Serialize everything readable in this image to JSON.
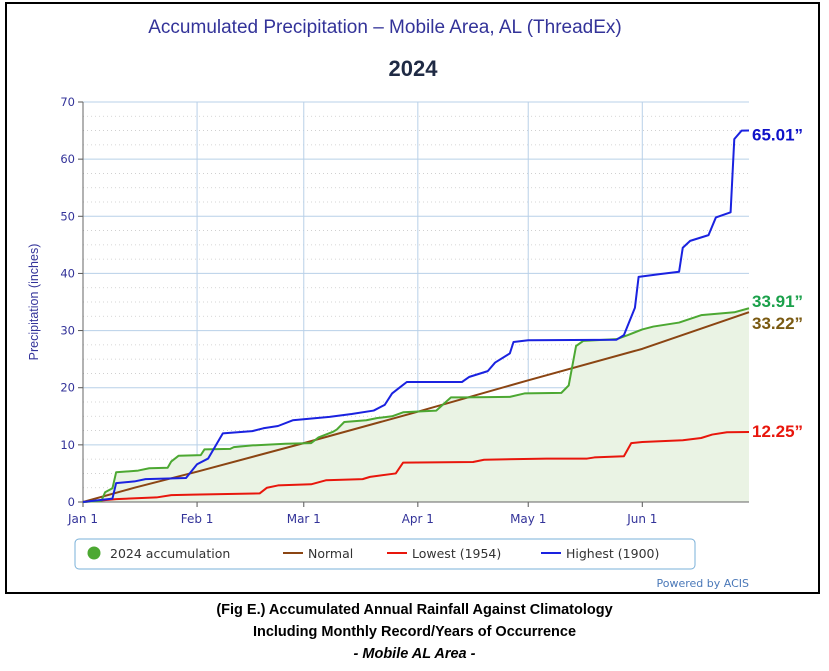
{
  "chart_data": {
    "type": "line",
    "title": "Accumulated Precipitation – Mobile Area, AL (ThreadEx)",
    "subtitle": "2024",
    "ylabel": "Precipitation (inches)",
    "xlabel": "",
    "x_domain": [
      "2024-01-01",
      "2024-06-30"
    ],
    "ylim": [
      0,
      70
    ],
    "y_ticks": [
      0,
      10,
      20,
      30,
      40,
      50,
      60,
      70
    ],
    "x_ticks": [
      {
        "label": "Jan 1",
        "date": "2024-01-01"
      },
      {
        "label": "Feb 1",
        "date": "2024-02-01"
      },
      {
        "label": "Mar 1",
        "date": "2024-03-01"
      },
      {
        "label": "Apr 1",
        "date": "2024-04-01"
      },
      {
        "label": "May 1",
        "date": "2024-05-01"
      },
      {
        "label": "Jun 1",
        "date": "2024-06-01"
      }
    ],
    "grid": true,
    "legend_position": "bottom",
    "credit": "Powered by ACIS",
    "series": [
      {
        "name": "2024 accumulation",
        "key": "accum",
        "color": "#4ca832",
        "fill": "#eaf3e4",
        "legend_marker": "dot",
        "points": [
          [
            "2024-01-01",
            0.0
          ],
          [
            "2024-01-06",
            0.2
          ],
          [
            "2024-01-07",
            1.7
          ],
          [
            "2024-01-09",
            2.4
          ],
          [
            "2024-01-10",
            5.2
          ],
          [
            "2024-01-16",
            5.5
          ],
          [
            "2024-01-19",
            5.9
          ],
          [
            "2024-01-24",
            6.0
          ],
          [
            "2024-01-25",
            7.1
          ],
          [
            "2024-01-27",
            8.1
          ],
          [
            "2024-02-02",
            8.2
          ],
          [
            "2024-02-03",
            9.2
          ],
          [
            "2024-02-10",
            9.3
          ],
          [
            "2024-02-11",
            9.6
          ],
          [
            "2024-02-16",
            9.9
          ],
          [
            "2024-02-25",
            10.2
          ],
          [
            "2024-03-03",
            10.3
          ],
          [
            "2024-03-05",
            11.3
          ],
          [
            "2024-03-09",
            12.3
          ],
          [
            "2024-03-10",
            12.7
          ],
          [
            "2024-03-12",
            14.0
          ],
          [
            "2024-03-18",
            14.3
          ],
          [
            "2024-03-21",
            14.7
          ],
          [
            "2024-03-25",
            15.0
          ],
          [
            "2024-03-28",
            15.7
          ],
          [
            "2024-04-06",
            16.0
          ],
          [
            "2024-04-10",
            18.3
          ],
          [
            "2024-04-14",
            18.3
          ],
          [
            "2024-04-26",
            18.4
          ],
          [
            "2024-04-30",
            19.0
          ],
          [
            "2024-05-10",
            19.1
          ],
          [
            "2024-05-12",
            20.4
          ],
          [
            "2024-05-14",
            27.3
          ],
          [
            "2024-05-16",
            28.2
          ],
          [
            "2024-05-25",
            28.5
          ],
          [
            "2024-05-28",
            29.2
          ],
          [
            "2024-06-01",
            30.2
          ],
          [
            "2024-06-04",
            30.7
          ],
          [
            "2024-06-11",
            31.4
          ],
          [
            "2024-06-17",
            32.7
          ],
          [
            "2024-06-26",
            33.2
          ],
          [
            "2024-06-30",
            33.91
          ]
        ]
      },
      {
        "name": "Normal",
        "key": "normal",
        "color": "#8b4513",
        "legend_marker": "line",
        "points": [
          [
            "2024-01-01",
            0.0
          ],
          [
            "2024-01-15",
            2.5
          ],
          [
            "2024-02-01",
            5.3
          ],
          [
            "2024-03-01",
            10.3
          ],
          [
            "2024-04-01",
            15.8
          ],
          [
            "2024-05-01",
            21.3
          ],
          [
            "2024-06-01",
            26.8
          ],
          [
            "2024-06-30",
            33.22
          ]
        ]
      },
      {
        "name": "Lowest (1954)",
        "key": "lowest",
        "color": "#e8160c",
        "legend_marker": "line",
        "points": [
          [
            "2024-01-01",
            0.0
          ],
          [
            "2024-01-10",
            0.5
          ],
          [
            "2024-01-21",
            0.8
          ],
          [
            "2024-01-25",
            1.2
          ],
          [
            "2024-01-31",
            1.3
          ],
          [
            "2024-02-18",
            1.5
          ],
          [
            "2024-02-20",
            2.5
          ],
          [
            "2024-02-23",
            2.9
          ],
          [
            "2024-03-03",
            3.1
          ],
          [
            "2024-03-07",
            3.8
          ],
          [
            "2024-03-17",
            4.0
          ],
          [
            "2024-03-19",
            4.4
          ],
          [
            "2024-03-26",
            5.0
          ],
          [
            "2024-03-28",
            6.9
          ],
          [
            "2024-04-16",
            7.0
          ],
          [
            "2024-04-19",
            7.4
          ],
          [
            "2024-05-06",
            7.6
          ],
          [
            "2024-05-17",
            7.6
          ],
          [
            "2024-05-19",
            7.8
          ],
          [
            "2024-05-27",
            8.0
          ],
          [
            "2024-05-29",
            10.3
          ],
          [
            "2024-06-01",
            10.5
          ],
          [
            "2024-06-12",
            10.8
          ],
          [
            "2024-06-17",
            11.2
          ],
          [
            "2024-06-20",
            11.8
          ],
          [
            "2024-06-24",
            12.2
          ],
          [
            "2024-06-30",
            12.25
          ]
        ]
      },
      {
        "name": "Highest (1900)",
        "key": "highest",
        "color": "#1a22e0",
        "legend_marker": "line",
        "points": [
          [
            "2024-01-01",
            0.0
          ],
          [
            "2024-01-09",
            0.6
          ],
          [
            "2024-01-10",
            3.3
          ],
          [
            "2024-01-15",
            3.6
          ],
          [
            "2024-01-18",
            4.0
          ],
          [
            "2024-01-29",
            4.2
          ],
          [
            "2024-02-01",
            6.6
          ],
          [
            "2024-02-04",
            7.6
          ],
          [
            "2024-02-08",
            12.0
          ],
          [
            "2024-02-16",
            12.4
          ],
          [
            "2024-02-19",
            12.9
          ],
          [
            "2024-02-23",
            13.3
          ],
          [
            "2024-02-27",
            14.3
          ],
          [
            "2024-03-08",
            14.9
          ],
          [
            "2024-03-14",
            15.4
          ],
          [
            "2024-03-20",
            16.0
          ],
          [
            "2024-03-23",
            17.0
          ],
          [
            "2024-03-25",
            19.0
          ],
          [
            "2024-03-27",
            20.0
          ],
          [
            "2024-03-29",
            21.0
          ],
          [
            "2024-04-13",
            21.0
          ],
          [
            "2024-04-15",
            21.9
          ],
          [
            "2024-04-20",
            22.9
          ],
          [
            "2024-04-22",
            24.4
          ],
          [
            "2024-04-26",
            26.0
          ],
          [
            "2024-04-27",
            28.0
          ],
          [
            "2024-05-01",
            28.3
          ],
          [
            "2024-05-25",
            28.4
          ],
          [
            "2024-05-27",
            29.2
          ],
          [
            "2024-05-30",
            34.0
          ],
          [
            "2024-05-31",
            39.4
          ],
          [
            "2024-06-06",
            39.9
          ],
          [
            "2024-06-11",
            40.3
          ],
          [
            "2024-06-12",
            44.5
          ],
          [
            "2024-06-14",
            45.7
          ],
          [
            "2024-06-19",
            46.7
          ],
          [
            "2024-06-21",
            49.8
          ],
          [
            "2024-06-25",
            50.7
          ],
          [
            "2024-06-26",
            63.5
          ],
          [
            "2024-06-28",
            65.0
          ],
          [
            "2024-06-30",
            65.01
          ]
        ]
      }
    ],
    "end_labels": [
      {
        "series": "highest",
        "text": "65.01”",
        "color": "#0f12c8"
      },
      {
        "series": "accum",
        "text": "33.91”",
        "color": "#1aa04a"
      },
      {
        "series": "normal",
        "text": "33.22”",
        "color": "#7a5a12"
      },
      {
        "series": "lowest",
        "text": "12.25”",
        "color": "#e8160c"
      }
    ]
  },
  "caption": {
    "line1": "(Fig E.) Accumulated Annual Rainfall Against  Climatology",
    "line2": "Including Monthly Record/Years of Occurrence",
    "line3": "- Mobile AL Area -"
  }
}
